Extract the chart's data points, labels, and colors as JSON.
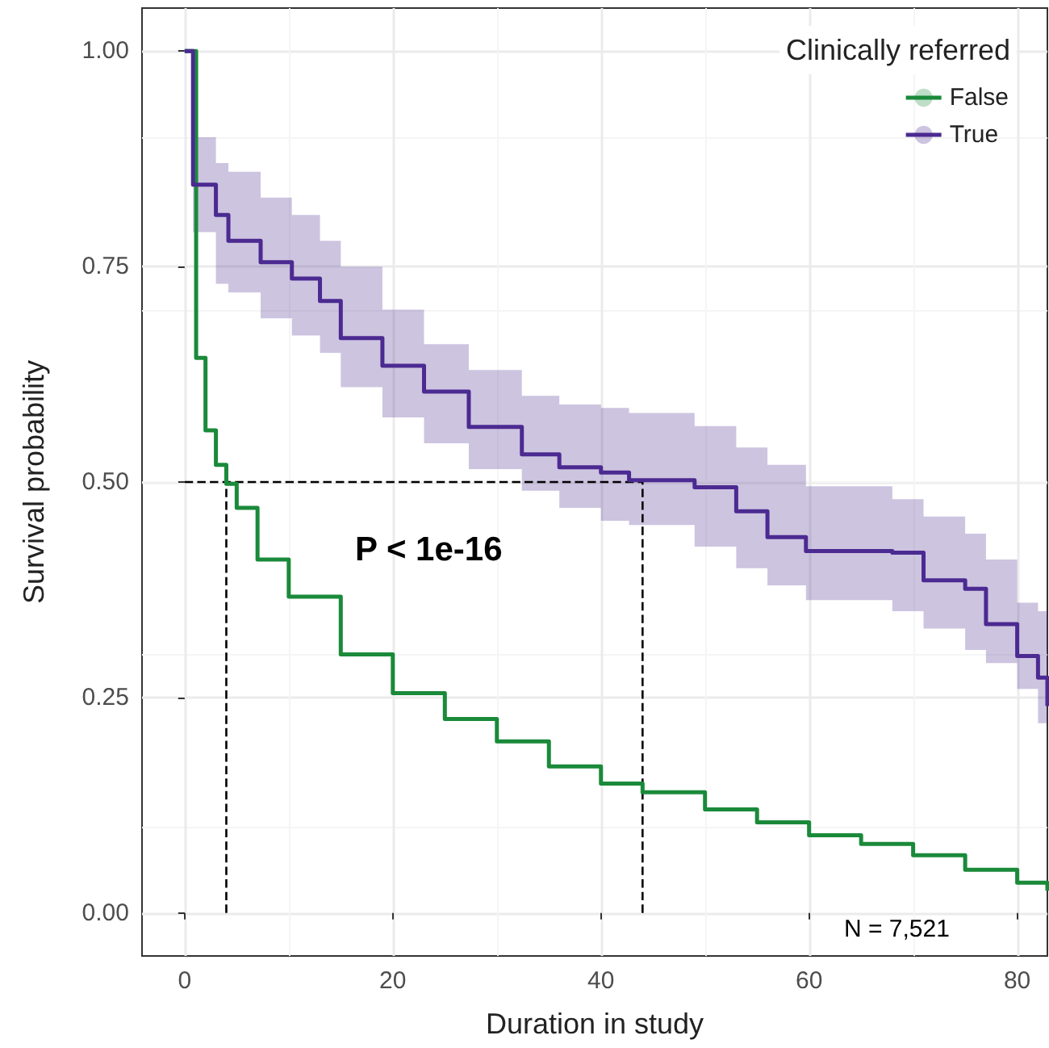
{
  "chart_data": {
    "type": "step",
    "xlabel": "Duration in study",
    "ylabel": "Survival probability",
    "legend_title": "Clinically referred",
    "legend": "top right",
    "grid": true,
    "xlim": [
      -4.1,
      82.9
    ],
    "xticks": [
      0,
      20,
      40,
      60,
      80
    ],
    "ylim": [
      -0.05,
      1.05
    ],
    "yticks": [
      {
        "value": 0,
        "label": "0.00"
      },
      {
        "value": 0.25,
        "label": "0.25"
      },
      {
        "value": 0.5,
        "label": "0.50"
      },
      {
        "value": 0.75,
        "label": "0.75"
      },
      {
        "value": 1,
        "label": "1.00"
      }
    ],
    "series": [
      {
        "name": "False",
        "color": "#1a8a3a",
        "x": [
          0,
          1.1,
          2,
          3,
          4,
          5,
          7,
          10,
          15,
          20,
          25,
          30,
          35,
          40,
          44,
          50,
          55,
          60,
          65,
          70,
          75,
          80,
          82.9
        ],
        "values": [
          1,
          0.644,
          0.56,
          0.52,
          0.498,
          0.47,
          0.41,
          0.367,
          0.3,
          0.255,
          0.225,
          0.199,
          0.17,
          0.15,
          0.14,
          0.12,
          0.105,
          0.09,
          0.08,
          0.067,
          0.05,
          0.035,
          0.026
        ]
      },
      {
        "name": "True",
        "color": "#4b2a91",
        "x": [
          0,
          0.8,
          3,
          4.2,
          7.3,
          10.3,
          13,
          15,
          19,
          23,
          27.3,
          32.4,
          36,
          40,
          42.7,
          49,
          53,
          56,
          59.7,
          68,
          71,
          75,
          77,
          80,
          82,
          82.9
        ],
        "values": [
          1,
          0.845,
          0.81,
          0.78,
          0.755,
          0.736,
          0.71,
          0.667,
          0.635,
          0.605,
          0.564,
          0.532,
          0.517,
          0.511,
          0.502,
          0.494,
          0.466,
          0.436,
          0.42,
          0.418,
          0.386,
          0.376,
          0.335,
          0.298,
          0.273,
          0.24
        ],
        "lower": [
          1,
          0.79,
          0.73,
          0.72,
          0.69,
          0.67,
          0.65,
          0.61,
          0.575,
          0.545,
          0.515,
          0.49,
          0.47,
          0.455,
          0.45,
          0.425,
          0.4,
          0.38,
          0.363,
          0.35,
          0.33,
          0.305,
          0.29,
          0.26,
          0.22,
          0.19
        ],
        "upper": [
          1,
          0.9,
          0.87,
          0.86,
          0.83,
          0.81,
          0.78,
          0.75,
          0.7,
          0.66,
          0.63,
          0.6,
          0.59,
          0.586,
          0.58,
          0.565,
          0.54,
          0.52,
          0.495,
          0.48,
          0.46,
          0.44,
          0.41,
          0.36,
          0.35,
          0.33
        ]
      }
    ],
    "ref_lines": [
      {
        "axis": "y",
        "value": 0.5,
        "line_style": "dashed",
        "color": "#000000"
      },
      {
        "axis": "x",
        "value": 4,
        "line_style": "dashed",
        "color": "#000000"
      },
      {
        "axis": "x",
        "value": 44,
        "line_style": "dashed",
        "color": "#000000"
      }
    ],
    "annotations": [
      "P < 1e-16",
      "N = 7,521"
    ]
  }
}
